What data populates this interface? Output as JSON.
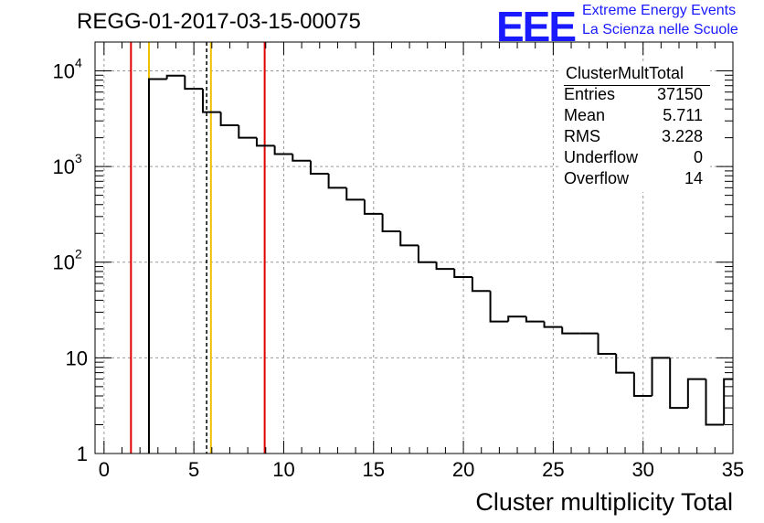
{
  "title": "REGG-01-2017-03-15-00075",
  "logo": {
    "text": "EEE",
    "line1": "Extreme Energy Events",
    "line2": "La Scienza nelle Scuole",
    "color": "#1a1aff"
  },
  "stats": {
    "name": "ClusterMultTotal",
    "rows": [
      {
        "key": "Entries",
        "value": "37150"
      },
      {
        "key": "Mean",
        "value": "5.711"
      },
      {
        "key": "RMS",
        "value": "3.228"
      },
      {
        "key": "Underflow",
        "value": "0"
      },
      {
        "key": "Overflow",
        "value": "14"
      }
    ]
  },
  "chart_data": {
    "type": "histogram",
    "title": "REGG-01-2017-03-15-00075",
    "xlabel": "Cluster multiplicity Total",
    "ylabel": "",
    "xlim": [
      -0.5,
      35
    ],
    "ylim": [
      1,
      20000
    ],
    "ylog": true,
    "grid": true,
    "bin_width": 1,
    "bin_edges_start": 2.5,
    "values": [
      8200,
      8900,
      6500,
      3700,
      2700,
      2000,
      1650,
      1350,
      1150,
      840,
      600,
      450,
      320,
      210,
      150,
      100,
      85,
      70,
      50,
      24,
      27,
      24,
      21,
      18,
      18,
      11,
      7,
      4,
      10,
      3,
      6,
      2,
      6
    ],
    "xticks": [
      0,
      5,
      10,
      15,
      20,
      25,
      30,
      35
    ],
    "yticks": [
      {
        "value": 1,
        "label": "1"
      },
      {
        "value": 10,
        "label": "10"
      },
      {
        "value": 100,
        "label": "10",
        "exp": "2"
      },
      {
        "value": 1000,
        "label": "10",
        "exp": "3"
      },
      {
        "value": 10000,
        "label": "10",
        "exp": "4"
      }
    ],
    "vlines": [
      {
        "x": 1.5,
        "color": "#e00000",
        "style": "solid"
      },
      {
        "x": 2.5,
        "color": "#f0c000",
        "style": "solid"
      },
      {
        "x": 5.711,
        "color": "#000000",
        "style": "dashed"
      },
      {
        "x": 5.95,
        "color": "#f0c000",
        "style": "solid"
      },
      {
        "x": 8.94,
        "color": "#e00000",
        "style": "solid"
      }
    ]
  }
}
